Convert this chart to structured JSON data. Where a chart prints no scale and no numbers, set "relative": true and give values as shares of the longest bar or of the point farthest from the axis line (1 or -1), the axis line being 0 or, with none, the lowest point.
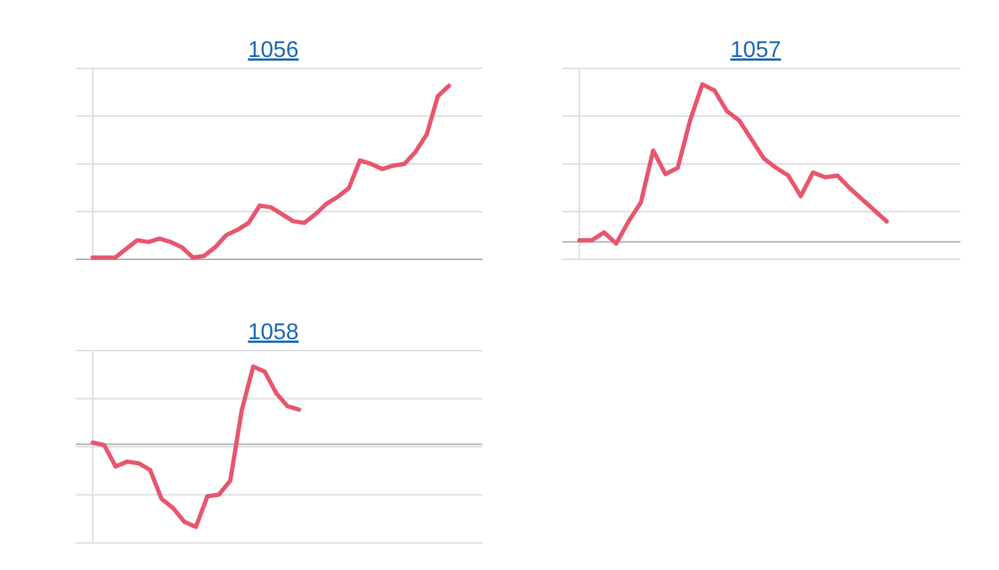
{
  "chart_data": [
    {
      "type": "line",
      "title": "1056",
      "relative": true,
      "grid": "y",
      "categories": [
        null,
        null,
        null,
        null,
        null,
        null,
        null,
        null,
        null,
        null,
        null,
        null,
        null,
        null,
        null,
        null,
        null,
        null,
        null,
        null,
        null,
        null,
        null,
        null,
        null,
        null,
        null,
        null,
        null,
        null,
        null,
        null,
        null,
        null,
        null,
        null
      ],
      "series": [
        {
          "color": "#e8566e",
          "values": [
            0.01,
            0.01,
            0.01,
            0.06,
            0.11,
            0.1,
            0.12,
            0.1,
            0.07,
            0.01,
            0.02,
            0.07,
            0.14,
            0.17,
            0.21,
            0.31,
            0.3,
            0.26,
            0.22,
            0.21,
            0.26,
            0.32,
            0.36,
            0.41,
            0.57,
            0.55,
            0.52,
            0.54,
            0.55,
            0.62,
            0.72,
            0.94,
            1,
            null,
            null,
            null
          ]
        }
      ]
    },
    {
      "type": "line",
      "title": "1057",
      "relative": true,
      "grid": "y",
      "categories": [
        null,
        null,
        null,
        null,
        null,
        null,
        null,
        null,
        null,
        null,
        null,
        null,
        null,
        null,
        null,
        null,
        null,
        null,
        null,
        null,
        null,
        null,
        null,
        null,
        null,
        null,
        null,
        null,
        null,
        null,
        null,
        null
      ],
      "series": [
        {
          "color": "#e8566e",
          "values": [
            0.01,
            0.01,
            0.06,
            -0.01,
            0.13,
            0.25,
            0.58,
            0.43,
            0.47,
            0.77,
            1,
            0.96,
            0.83,
            0.77,
            0.65,
            0.53,
            0.47,
            0.42,
            0.29,
            0.44,
            0.41,
            0.42,
            0.34,
            0.27,
            0.2,
            0.13,
            null,
            null,
            null,
            null,
            null,
            null
          ]
        }
      ]
    },
    {
      "type": "line",
      "title": "1058",
      "relative": true,
      "grid": "y",
      "categories": [
        null,
        null,
        null,
        null,
        null,
        null,
        null,
        null,
        null,
        null,
        null,
        null,
        null,
        null,
        null,
        null,
        null,
        null,
        null,
        null,
        null,
        null,
        null,
        null,
        null,
        null,
        null,
        null,
        null,
        null,
        null,
        null,
        null,
        null,
        null
      ],
      "series": [
        {
          "color": "#e8566e",
          "values": [
            0.02,
            -0.01,
            -0.27,
            -0.21,
            -0.23,
            -0.31,
            -0.66,
            -0.77,
            -0.94,
            -1,
            -0.63,
            -0.61,
            -0.44,
            0.41,
            0.94,
            0.88,
            0.62,
            0.46,
            0.42,
            null,
            null,
            null,
            null,
            null,
            null,
            null,
            null,
            null,
            null,
            null,
            null,
            null,
            null,
            null,
            null
          ]
        }
      ]
    }
  ]
}
